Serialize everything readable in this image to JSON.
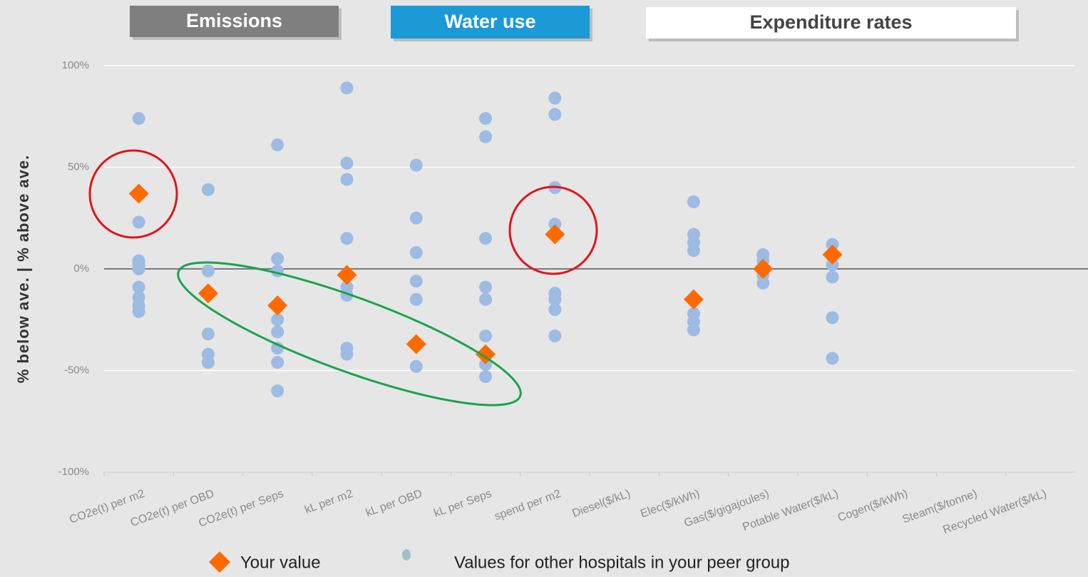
{
  "chart_data": {
    "type": "strip",
    "groups": [
      {
        "label": "Emissions",
        "color": "#7f7f7f"
      },
      {
        "label": "Water use",
        "color": "#1c9ad6"
      },
      {
        "label": "Expenditure rates",
        "color": "#ffffff"
      }
    ],
    "y_label": "%  below ave.   |   %  above ave.",
    "categories": [
      "CO2e(t) per m2",
      "CO2e(t) per OBD",
      "CO2e(t) per Seps",
      "kL per m2",
      "kL per OBD",
      "kL per Seps",
      "spend per m2",
      "Diesel($/kL)",
      "Elec($/kWh)",
      "Gas($/gigajoules)",
      "Potable Water($/kL)",
      "Cogen($/kWh)",
      "Steam($/tonne)",
      "Recycled Water($/kL)"
    ],
    "series": [
      {
        "name": "Your value",
        "color": "#ff6a00",
        "marker": "diamond",
        "values": [
          37,
          -12,
          -18,
          -3,
          -37,
          -42,
          17,
          null,
          -15,
          0,
          7,
          null,
          null,
          null
        ]
      },
      {
        "name": "Values for other hospitals in your peer group",
        "color": "#9dbbe3",
        "marker": "circle",
        "values": [
          [
            74,
            23,
            4,
            2,
            0,
            -9,
            -14,
            -18,
            -21
          ],
          [
            39,
            -1,
            -12,
            -32,
            -42,
            -46
          ],
          [
            61,
            5,
            -1,
            -25,
            -31,
            -39,
            -46,
            -60
          ],
          [
            89,
            52,
            44,
            15,
            -9,
            -13,
            -39,
            -42
          ],
          [
            51,
            25,
            8,
            -6,
            -15,
            -48
          ],
          [
            74,
            65,
            15,
            -9,
            -15,
            -33,
            -47,
            -53
          ],
          [
            84,
            76,
            40,
            22,
            -12,
            -15,
            -20,
            -33
          ],
          [],
          [
            33,
            17,
            13,
            9,
            -22,
            -26,
            -30
          ],
          [
            7,
            4,
            -3,
            -7
          ],
          [
            12,
            6,
            2,
            -4,
            -24,
            -44
          ],
          [],
          [],
          []
        ]
      }
    ],
    "ylim": [
      -100,
      100
    ],
    "yticks": [
      {
        "value": -100,
        "label": "-100%"
      },
      {
        "value": -50,
        "label": "-50%"
      },
      {
        "value": 0,
        "label": "0%"
      },
      {
        "value": 50,
        "label": "50%"
      },
      {
        "value": 100,
        "label": "100%"
      }
    ],
    "grid": true
  }
}
